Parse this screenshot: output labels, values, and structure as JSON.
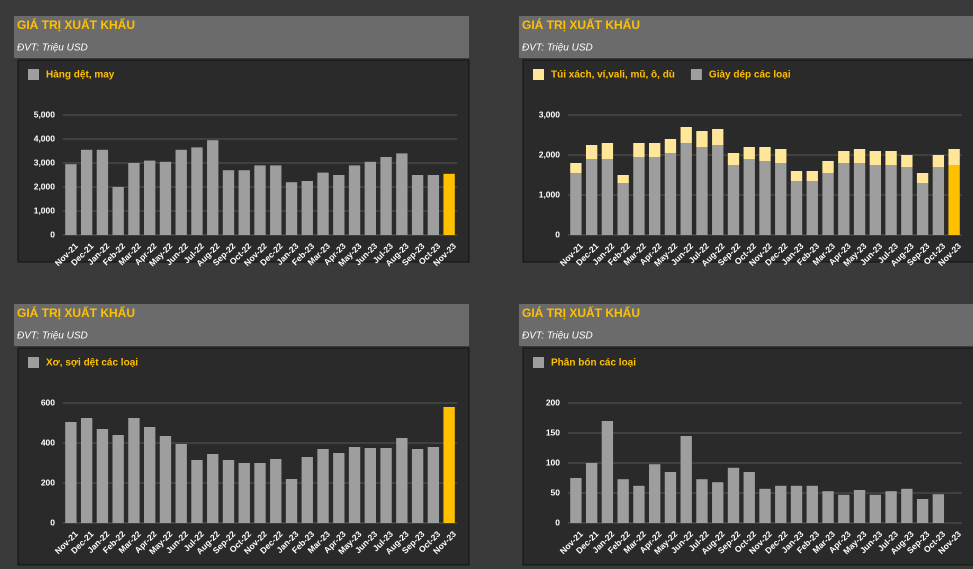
{
  "chart_data": [
    {
      "type": "bar",
      "title": "GIÁ TRỊ XUẤT KHẨU",
      "subtitle": "ĐVT: Triệu USD",
      "categories": [
        "Nov-21",
        "Dec-21",
        "Jan-22",
        "Feb-22",
        "Mar-22",
        "Apr-22",
        "May-22",
        "Jun-22",
        "Jul-22",
        "Aug-22",
        "Sep-22",
        "Oct-22",
        "Nov-22",
        "Dec-22",
        "Jan-23",
        "Feb-23",
        "Mar-23",
        "Apr-23",
        "May-23",
        "Jun-23",
        "Jul-23",
        "Aug-23",
        "Sep-23",
        "Oct-23",
        "Nov-23"
      ],
      "series": [
        {
          "name": "Hàng dệt, may",
          "color": "#9e9e9e",
          "colors": [
            "#9e9e9e",
            "#9e9e9e",
            "#9e9e9e",
            "#9e9e9e",
            "#9e9e9e",
            "#9e9e9e",
            "#9e9e9e",
            "#9e9e9e",
            "#9e9e9e",
            "#9e9e9e",
            "#9e9e9e",
            "#9e9e9e",
            "#9e9e9e",
            "#9e9e9e",
            "#9e9e9e",
            "#9e9e9e",
            "#9e9e9e",
            "#9e9e9e",
            "#9e9e9e",
            "#9e9e9e",
            "#9e9e9e",
            "#9e9e9e",
            "#9e9e9e",
            "#9e9e9e",
            "#ffc000"
          ],
          "values": [
            2950,
            3550,
            3550,
            2000,
            3000,
            3100,
            3050,
            3550,
            3650,
            3950,
            2700,
            2700,
            2900,
            2900,
            2200,
            2250,
            2600,
            2500,
            2900,
            3050,
            3250,
            3400,
            2500,
            2500,
            2550
          ]
        }
      ],
      "ylim": [
        0,
        5000
      ],
      "yticks": [
        0,
        {
          "value": 1000,
          "label": "1,000"
        },
        {
          "value": 2000,
          "label": "2,000"
        },
        {
          "value": 3000,
          "label": "3,000"
        },
        {
          "value": 4000,
          "label": "4,000"
        },
        {
          "value": 5000,
          "label": "5,000"
        }
      ],
      "grid": true
    },
    {
      "type": "stacked_bar",
      "title": "GIÁ TRỊ XUẤT KHẨU",
      "subtitle": "ĐVT: Triệu USD",
      "categories": [
        "Nov-21",
        "Dec-21",
        "Jan-22",
        "Feb-22",
        "Mar-22",
        "Apr-22",
        "May-22",
        "Jun-22",
        "Jul-22",
        "Aug-22",
        "Sep-22",
        "Oct-22",
        "Nov-22",
        "Dec-22",
        "Jan-23",
        "Feb-23",
        "Mar-23",
        "Apr-23",
        "May-23",
        "Jun-23",
        "Jul-23",
        "Aug-23",
        "Sep-23",
        "Oct-23",
        "Nov-23"
      ],
      "series": [
        {
          "name": "Túi xách, ví,vali, mũ, ô, dù",
          "color": "#ffe699",
          "values": [
            250,
            350,
            400,
            200,
            350,
            350,
            350,
            400,
            400,
            400,
            300,
            300,
            350,
            350,
            250,
            250,
            300,
            300,
            350,
            350,
            350,
            300,
            250,
            300,
            400
          ]
        },
        {
          "name": "Giày dép các loại",
          "color": "#9e9e9e",
          "colors": [
            "#9e9e9e",
            "#9e9e9e",
            "#9e9e9e",
            "#9e9e9e",
            "#9e9e9e",
            "#9e9e9e",
            "#9e9e9e",
            "#9e9e9e",
            "#9e9e9e",
            "#9e9e9e",
            "#9e9e9e",
            "#9e9e9e",
            "#9e9e9e",
            "#9e9e9e",
            "#9e9e9e",
            "#9e9e9e",
            "#9e9e9e",
            "#9e9e9e",
            "#9e9e9e",
            "#9e9e9e",
            "#9e9e9e",
            "#9e9e9e",
            "#9e9e9e",
            "#9e9e9e",
            "#ffc000"
          ],
          "values": [
            1550,
            1900,
            1900,
            1300,
            1950,
            1950,
            2050,
            2300,
            2200,
            2250,
            1750,
            1900,
            1850,
            1800,
            1350,
            1350,
            1550,
            1800,
            1800,
            1750,
            1750,
            1700,
            1300,
            1700,
            1750
          ]
        }
      ],
      "ylim": [
        0,
        3000
      ],
      "yticks": [
        0,
        {
          "value": 1000,
          "label": "1,000"
        },
        {
          "value": 2000,
          "label": "2,000"
        },
        {
          "value": 3000,
          "label": "3,000"
        }
      ],
      "grid": true
    },
    {
      "type": "bar",
      "title": "GIÁ TRỊ XUẤT KHẨU",
      "subtitle": "ĐVT: Triệu USD",
      "categories": [
        "Nov-21",
        "Dec-21",
        "Jan-22",
        "Feb-22",
        "Mar-22",
        "Apr-22",
        "May-22",
        "Jun-22",
        "Jul-22",
        "Aug-22",
        "Sep-22",
        "Oct-22",
        "Nov-22",
        "Dec-22",
        "Jan-23",
        "Feb-23",
        "Mar-23",
        "Apr-23",
        "May-23",
        "Jun-23",
        "Jul-23",
        "Aug-23",
        "Sep-23",
        "Oct-23",
        "Nov-23"
      ],
      "series": [
        {
          "name": "Xơ, sợi dệt các loại",
          "color": "#9e9e9e",
          "colors": [
            "#9e9e9e",
            "#9e9e9e",
            "#9e9e9e",
            "#9e9e9e",
            "#9e9e9e",
            "#9e9e9e",
            "#9e9e9e",
            "#9e9e9e",
            "#9e9e9e",
            "#9e9e9e",
            "#9e9e9e",
            "#9e9e9e",
            "#9e9e9e",
            "#9e9e9e",
            "#9e9e9e",
            "#9e9e9e",
            "#9e9e9e",
            "#9e9e9e",
            "#9e9e9e",
            "#9e9e9e",
            "#9e9e9e",
            "#9e9e9e",
            "#9e9e9e",
            "#9e9e9e",
            "#ffc000"
          ],
          "values": [
            505,
            525,
            470,
            440,
            525,
            480,
            435,
            395,
            315,
            345,
            315,
            300,
            300,
            320,
            220,
            330,
            370,
            350,
            380,
            375,
            375,
            425,
            370,
            380,
            580
          ]
        }
      ],
      "ylim": [
        0,
        600
      ],
      "yticks": [
        0,
        200,
        400,
        600
      ],
      "grid": true
    },
    {
      "type": "bar",
      "title": "GIÁ TRỊ XUẤT KHẨU",
      "subtitle": "ĐVT: Triệu USD",
      "categories": [
        "Nov-21",
        "Dec-21",
        "Jan-22",
        "Feb-22",
        "Mar-22",
        "Apr-22",
        "May-22",
        "Jun-22",
        "Jul-22",
        "Aug-22",
        "Sep-22",
        "Oct-22",
        "Nov-22",
        "Dec-22",
        "Jan-23",
        "Feb-23",
        "Mar-23",
        "Apr-23",
        "May-23",
        "Jun-23",
        "Jul-23",
        "Aug-23",
        "Sep-23",
        "Oct-23",
        "Nov-23"
      ],
      "series": [
        {
          "name": "Phân bón các loại",
          "color": "#9e9e9e",
          "values": [
            75,
            100,
            170,
            73,
            62,
            98,
            85,
            145,
            73,
            68,
            92,
            85,
            57,
            62,
            62,
            62,
            53,
            47,
            55,
            47,
            53,
            57,
            40,
            48,
            null
          ]
        }
      ],
      "ylim": [
        0,
        200
      ],
      "yticks": [
        0,
        50,
        100,
        150,
        200
      ],
      "grid": true
    }
  ]
}
